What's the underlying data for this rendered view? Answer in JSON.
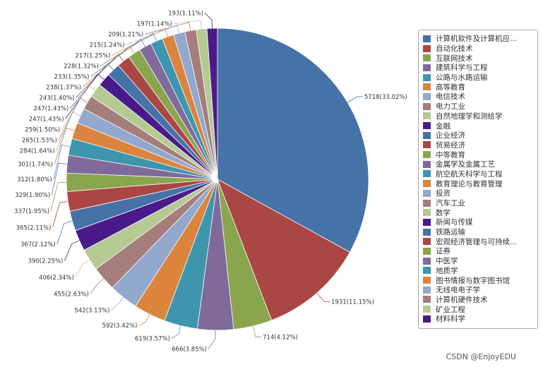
{
  "chart_data": {
    "type": "pie",
    "title": "",
    "legend_position": "right",
    "slices": [
      {
        "name": "计算机软件及计算机应...",
        "value": 5718,
        "label": "5718(33.02%)",
        "color": "#4572A7"
      },
      {
        "name": "自动化技术",
        "value": 1931,
        "label": "1931(11.15%)",
        "color": "#AA4643"
      },
      {
        "name": "互联网技术",
        "value": 714,
        "label": "714(4.12%)",
        "color": "#89A54E"
      },
      {
        "name": "建筑科学与工程",
        "value": 666,
        "label": "666(3.85%)",
        "color": "#80699B"
      },
      {
        "name": "公路与水路运输",
        "value": 619,
        "label": "619(3.57%)",
        "color": "#3D96AE"
      },
      {
        "name": "高等教育",
        "value": 592,
        "label": "592(3.42%)",
        "color": "#DB843D"
      },
      {
        "name": "电信技术",
        "value": 542,
        "label": "542(3.13%)",
        "color": "#92A8CD"
      },
      {
        "name": "电力工业",
        "value": 455,
        "label": "455(2.63%)",
        "color": "#A47D7C"
      },
      {
        "name": "自然地理学和测绘学",
        "value": 406,
        "label": "406(2.34%)",
        "color": "#B5CA92"
      },
      {
        "name": "金融",
        "value": 390,
        "label": "390(2.25%)",
        "color": "#4B1A8A"
      },
      {
        "name": "企业经济",
        "value": 367,
        "label": "367(2.12%)",
        "color": "#4572A7"
      },
      {
        "name": "贸易经济",
        "value": 365,
        "label": "365(2.11%)",
        "color": "#AA4643"
      },
      {
        "name": "中等教育",
        "value": 337,
        "label": "337(1.95%)",
        "color": "#89A54E"
      },
      {
        "name": "金属学及金属工艺",
        "value": 329,
        "label": "329(1.90%)",
        "color": "#80699B"
      },
      {
        "name": "航空航天科学与工程",
        "value": 312,
        "label": "312(1.80%)",
        "color": "#3D96AE"
      },
      {
        "name": "教育理论与教育管理",
        "value": 301,
        "label": "301(1.74%)",
        "color": "#DB843D"
      },
      {
        "name": "投资",
        "value": 284,
        "label": "284(1.64%)",
        "color": "#92A8CD"
      },
      {
        "name": "汽车工业",
        "value": 265,
        "label": "265(1.53%)",
        "color": "#A47D7C"
      },
      {
        "name": "数学",
        "value": 259,
        "label": "259(1.50%)",
        "color": "#B5CA92"
      },
      {
        "name": "新闻与传媒",
        "value": 247,
        "label": "247(1.43%)",
        "color": "#4B1A8A"
      },
      {
        "name": "铁路运输",
        "value": 247,
        "label": "247(1.43%)",
        "color": "#4572A7"
      },
      {
        "name": "宏观经济管理与可持续...",
        "value": 243,
        "label": "243(1.40%)",
        "color": "#AA4643"
      },
      {
        "name": "证券",
        "value": 238,
        "label": "238(1.37%)",
        "color": "#89A54E"
      },
      {
        "name": "中医学",
        "value": 233,
        "label": "233(1.35%)",
        "color": "#80699B"
      },
      {
        "name": "地质学",
        "value": 228,
        "label": "228(1.32%)",
        "color": "#3D96AE"
      },
      {
        "name": "图书情报与数字图书馆",
        "value": 217,
        "label": "217(1.25%)",
        "color": "#DB843D"
      },
      {
        "name": "无线电电子学",
        "value": 215,
        "label": "215(1.24%)",
        "color": "#92A8CD"
      },
      {
        "name": "计算机硬件技术",
        "value": 209,
        "label": "209(1.21%)",
        "color": "#A47D7C"
      },
      {
        "name": "矿业工程",
        "value": 197,
        "label": "197(1.14%)",
        "color": "#B5CA92"
      },
      {
        "name": "材料科学",
        "value": 193,
        "label": "193(1.11%)",
        "color": "#4B1A8A"
      }
    ]
  },
  "watermark": "CSDN @EnjoyEDU"
}
